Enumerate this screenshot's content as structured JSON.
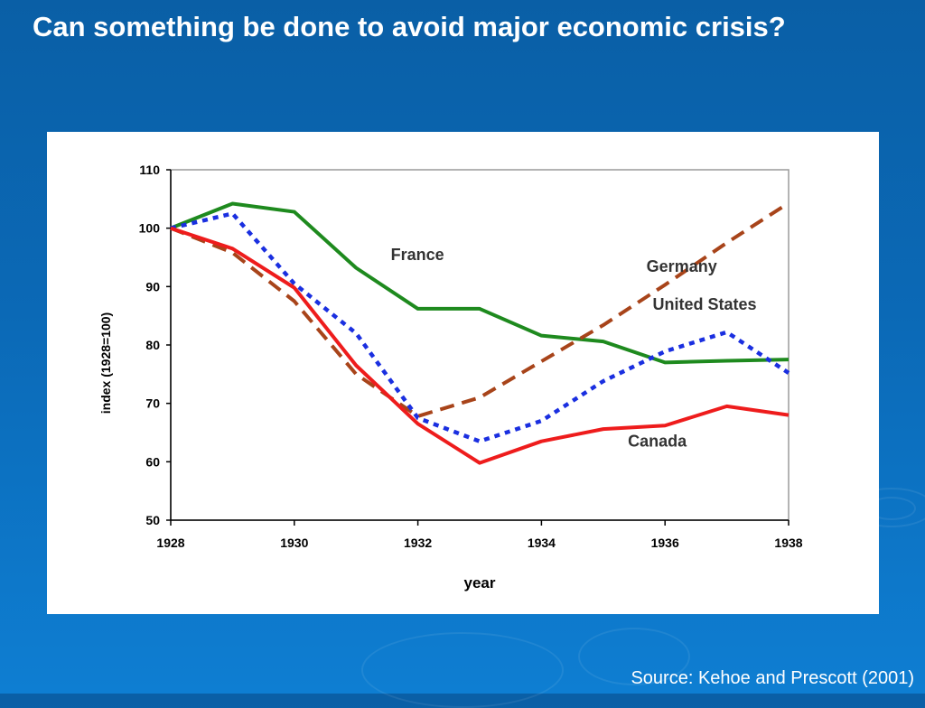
{
  "slide": {
    "title": "Can something be done to avoid major economic crisis?",
    "source": "Source: Kehoe and Prescott (2001)"
  },
  "chart_data": {
    "type": "line",
    "xlabel": "year",
    "ylabel": "index (1928=100)",
    "xlim": [
      1928,
      1938
    ],
    "ylim": [
      50,
      110
    ],
    "xticks": [
      1928,
      1930,
      1932,
      1934,
      1936,
      1938
    ],
    "yticks": [
      50,
      60,
      70,
      80,
      90,
      100,
      110
    ],
    "grid": false,
    "legend": "inline labels",
    "x": [
      1928,
      1929,
      1930,
      1931,
      1932,
      1933,
      1934,
      1935,
      1936,
      1937,
      1938
    ],
    "series": [
      {
        "name": "France",
        "color": "#1e8a1e",
        "style": "solid",
        "values": [
          100,
          104.2,
          102.8,
          93.2,
          86.2,
          86.2,
          81.6,
          80.6,
          77,
          77.3,
          77.5
        ]
      },
      {
        "name": "Germany",
        "color": "#a8441a",
        "style": "dashed",
        "values": [
          100,
          95.8,
          87.5,
          75,
          67.8,
          71,
          77.2,
          83.4,
          90.3,
          97.5,
          104.3
        ]
      },
      {
        "name": "United States",
        "color": "#1a2fe0",
        "style": "dotted",
        "values": [
          100,
          102.5,
          90.5,
          82,
          67.5,
          63.5,
          67,
          73.8,
          78.9,
          82.2,
          75.2
        ]
      },
      {
        "name": "Canada",
        "color": "#ee1c1c",
        "style": "solid",
        "values": [
          100,
          96.5,
          89.8,
          76.5,
          66.5,
          59.8,
          63.5,
          65.6,
          66.2,
          69.5,
          68
        ]
      }
    ]
  }
}
